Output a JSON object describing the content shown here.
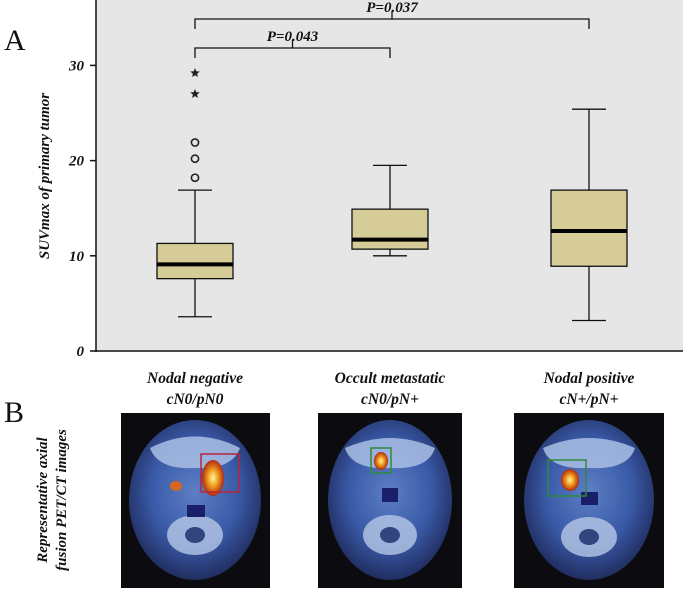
{
  "panel_letters": {
    "a": "A",
    "b": "B"
  },
  "side_label": {
    "line1": "Representative axial",
    "line2": "fusion PET/CT images"
  },
  "colors": {
    "plot_bg": "#e6e6e6",
    "box_fill": "#d5cc97",
    "box_stroke": "#111111",
    "scan_bg": "#0b0b10"
  },
  "chart_data": {
    "type": "boxplot",
    "ylabel": "SUVmax of primary tumor",
    "ylim": [
      0,
      36
    ],
    "yticks": [
      0,
      10,
      20,
      30
    ],
    "grid": false,
    "categories": [
      {
        "line1": "Nodal negative",
        "line2": "cN0/pN0"
      },
      {
        "line1": "Occult metastatic",
        "line2": "cN0/pN+"
      },
      {
        "line1": "Nodal positive",
        "line2": "cN+/pN+"
      }
    ],
    "boxes": [
      {
        "whisker_low": 3.6,
        "q1": 7.6,
        "median": 9.1,
        "q3": 11.3,
        "whisker_high": 16.9
      },
      {
        "whisker_low": 10.0,
        "q1": 10.7,
        "median": 11.7,
        "q3": 14.9,
        "whisker_high": 19.5
      },
      {
        "whisker_low": 3.2,
        "q1": 8.9,
        "median": 12.6,
        "q3": 16.9,
        "whisker_high": 25.4
      }
    ],
    "outliers": [
      {
        "group": 0,
        "value": 18.2,
        "marker": "circle"
      },
      {
        "group": 0,
        "value": 20.2,
        "marker": "circle"
      },
      {
        "group": 0,
        "value": 21.9,
        "marker": "circle"
      },
      {
        "group": 0,
        "value": 27.0,
        "marker": "star"
      },
      {
        "group": 0,
        "value": 29.2,
        "marker": "star"
      }
    ],
    "comparisons": [
      {
        "from": 0,
        "to": 1,
        "label": "P=0.043"
      },
      {
        "from": 0,
        "to": 2,
        "label": "P=0.037"
      }
    ]
  }
}
